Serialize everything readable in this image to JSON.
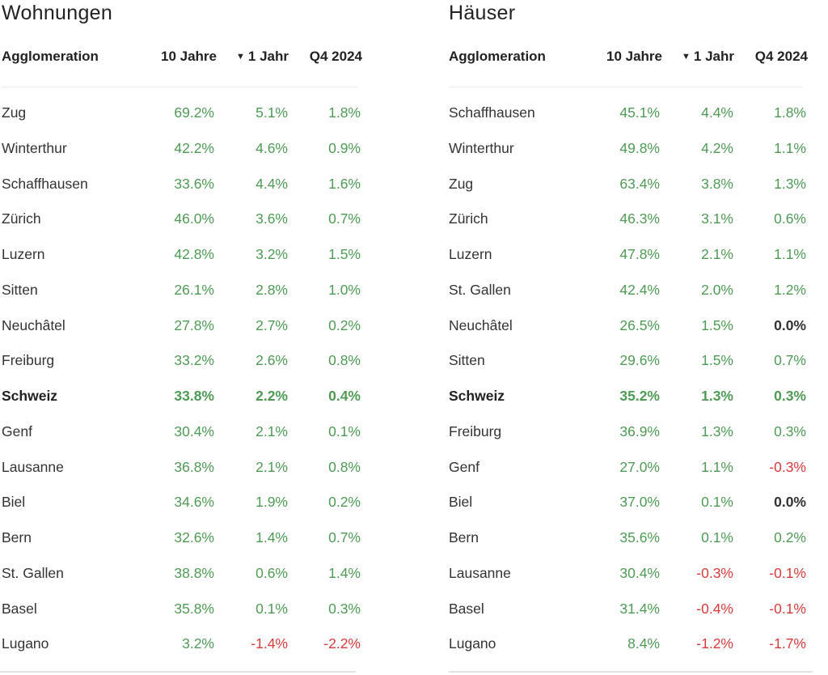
{
  "colors": {
    "positive": "#4f9a55",
    "negative": "#d83a3a",
    "neutral": "#333333"
  },
  "icons": {
    "sort": "sort-desc-triangle-icon"
  },
  "left": {
    "title": "Wohnungen",
    "headers": {
      "name": "Agglomeration",
      "c1": "10 Jahre",
      "sort_glyph": "▼",
      "c2": "1 Jahr",
      "c3": "Q4 2024"
    },
    "rows": [
      {
        "name": "Zug",
        "c1": "69.2%",
        "c2": "5.1%",
        "c3": "1.8%"
      },
      {
        "name": "Winterthur",
        "c1": "42.2%",
        "c2": "4.6%",
        "c3": "0.9%"
      },
      {
        "name": "Schaffhausen",
        "c1": "33.6%",
        "c2": "4.4%",
        "c3": "1.6%"
      },
      {
        "name": "Zürich",
        "c1": "46.0%",
        "c2": "3.6%",
        "c3": "0.7%"
      },
      {
        "name": "Luzern",
        "c1": "42.8%",
        "c2": "3.2%",
        "c3": "1.5%"
      },
      {
        "name": "Sitten",
        "c1": "26.1%",
        "c2": "2.8%",
        "c3": "1.0%"
      },
      {
        "name": "Neuchâtel",
        "c1": "27.8%",
        "c2": "2.7%",
        "c3": "0.2%"
      },
      {
        "name": "Freiburg",
        "c1": "33.2%",
        "c2": "2.6%",
        "c3": "0.8%"
      },
      {
        "name": "Schweiz",
        "c1": "33.8%",
        "c2": "2.2%",
        "c3": "0.4%",
        "bold": true
      },
      {
        "name": "Genf",
        "c1": "30.4%",
        "c2": "2.1%",
        "c3": "0.1%"
      },
      {
        "name": "Lausanne",
        "c1": "36.8%",
        "c2": "2.1%",
        "c3": "0.8%"
      },
      {
        "name": "Biel",
        "c1": "34.6%",
        "c2": "1.9%",
        "c3": "0.2%"
      },
      {
        "name": "Bern",
        "c1": "32.6%",
        "c2": "1.4%",
        "c3": "0.7%"
      },
      {
        "name": "St. Gallen",
        "c1": "38.8%",
        "c2": "0.6%",
        "c3": "1.4%"
      },
      {
        "name": "Basel",
        "c1": "35.8%",
        "c2": "0.1%",
        "c3": "0.3%"
      },
      {
        "name": "Lugano",
        "c1": "3.2%",
        "c2": "-1.4%",
        "c3": "-2.2%"
      }
    ]
  },
  "right": {
    "title": "Häuser",
    "headers": {
      "name": "Agglomeration",
      "c1": "10 Jahre",
      "sort_glyph": "▼",
      "c2": "1 Jahr",
      "c3": "Q4 2024"
    },
    "rows": [
      {
        "name": "Schaffhausen",
        "c1": "45.1%",
        "c2": "4.4%",
        "c3": "1.8%"
      },
      {
        "name": "Winterthur",
        "c1": "49.8%",
        "c2": "4.2%",
        "c3": "1.1%"
      },
      {
        "name": "Zug",
        "c1": "63.4%",
        "c2": "3.8%",
        "c3": "1.3%"
      },
      {
        "name": "Zürich",
        "c1": "46.3%",
        "c2": "3.1%",
        "c3": "0.6%"
      },
      {
        "name": "Luzern",
        "c1": "47.8%",
        "c2": "2.1%",
        "c3": "1.1%"
      },
      {
        "name": "St. Gallen",
        "c1": "42.4%",
        "c2": "2.0%",
        "c3": "1.2%"
      },
      {
        "name": "Neuchâtel",
        "c1": "26.5%",
        "c2": "1.5%",
        "c3": "0.0%"
      },
      {
        "name": "Sitten",
        "c1": "29.6%",
        "c2": "1.5%",
        "c3": "0.7%"
      },
      {
        "name": "Schweiz",
        "c1": "35.2%",
        "c2": "1.3%",
        "c3": "0.3%",
        "bold": true
      },
      {
        "name": "Freiburg",
        "c1": "36.9%",
        "c2": "1.3%",
        "c3": "0.3%"
      },
      {
        "name": "Genf",
        "c1": "27.0%",
        "c2": "1.1%",
        "c3": "-0.3%"
      },
      {
        "name": "Biel",
        "c1": "37.0%",
        "c2": "0.1%",
        "c3": "0.0%"
      },
      {
        "name": "Bern",
        "c1": "35.6%",
        "c2": "0.1%",
        "c3": "0.2%"
      },
      {
        "name": "Lausanne",
        "c1": "30.4%",
        "c2": "-0.3%",
        "c3": "-0.1%"
      },
      {
        "name": "Basel",
        "c1": "31.4%",
        "c2": "-0.4%",
        "c3": "-0.1%"
      },
      {
        "name": "Lugano",
        "c1": "8.4%",
        "c2": "-1.2%",
        "c3": "-1.7%"
      }
    ]
  }
}
